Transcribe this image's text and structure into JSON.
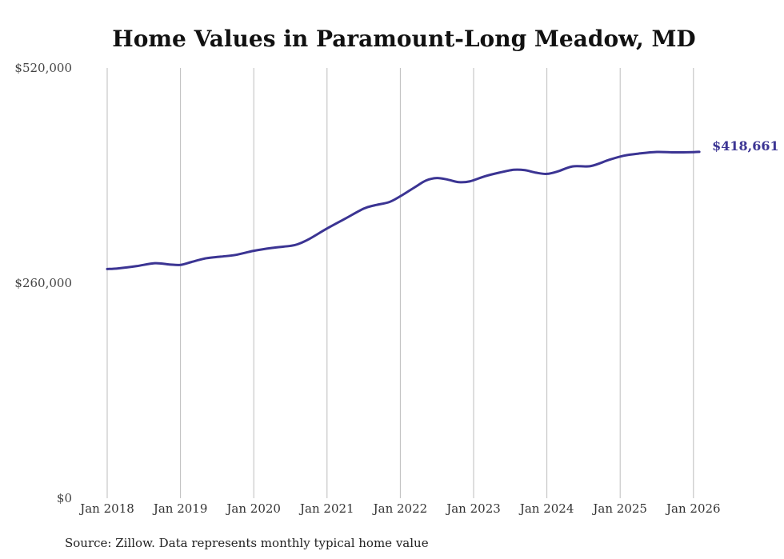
{
  "chart_data": {
    "type": "line",
    "title": "Home Values in Paramount-Long Meadow, MD",
    "xlabel": "",
    "ylabel": "",
    "ylim": [
      0,
      520000
    ],
    "ytick_values": [
      0,
      260000,
      520000
    ],
    "ytick_labels": [
      "$0",
      "$260,000",
      "$520,000"
    ],
    "xticks": [
      {
        "year": 2018,
        "label": "Jan 2018"
      },
      {
        "year": 2019,
        "label": "Jan 2019"
      },
      {
        "year": 2020,
        "label": "Jan 2020"
      },
      {
        "year": 2021,
        "label": "Jan 2021"
      },
      {
        "year": 2022,
        "label": "Jan 2022"
      },
      {
        "year": 2023,
        "label": "Jan 2023"
      },
      {
        "year": 2024,
        "label": "Jan 2024"
      },
      {
        "year": 2025,
        "label": "Jan 2025"
      },
      {
        "year": 2026,
        "label": "Jan 2026"
      }
    ],
    "grid": "vertical",
    "series": [
      {
        "name": "Typical home value",
        "color": "#3b3493",
        "x": [
          2018.0,
          2018.15,
          2018.4,
          2018.65,
          2018.85,
          2019.0,
          2019.15,
          2019.35,
          2019.55,
          2019.75,
          2020.0,
          2020.25,
          2020.5,
          2020.6,
          2020.75,
          2021.0,
          2021.25,
          2021.5,
          2021.65,
          2021.85,
          2022.0,
          2022.2,
          2022.35,
          2022.5,
          2022.65,
          2022.8,
          2022.95,
          2023.15,
          2023.35,
          2023.55,
          2023.7,
          2023.85,
          2024.0,
          2024.15,
          2024.35,
          2024.6,
          2024.85,
          2025.05,
          2025.25,
          2025.5,
          2025.75,
          2026.0,
          2026.08
        ],
        "values": [
          277000,
          277800,
          280500,
          284000,
          282500,
          282000,
          285500,
          290000,
          292000,
          294000,
          299000,
          302500,
          305000,
          307000,
          313000,
          326000,
          338000,
          350000,
          354000,
          358000,
          365000,
          376000,
          384000,
          387000,
          385000,
          382000,
          383000,
          389000,
          393500,
          397000,
          396500,
          393500,
          392000,
          395000,
          401000,
          401500,
          409000,
          414000,
          416500,
          418500,
          418000,
          418300,
          418661
        ]
      }
    ],
    "end_label": "$418,661"
  },
  "source": "Source: Zillow. Data represents monthly typical home value"
}
